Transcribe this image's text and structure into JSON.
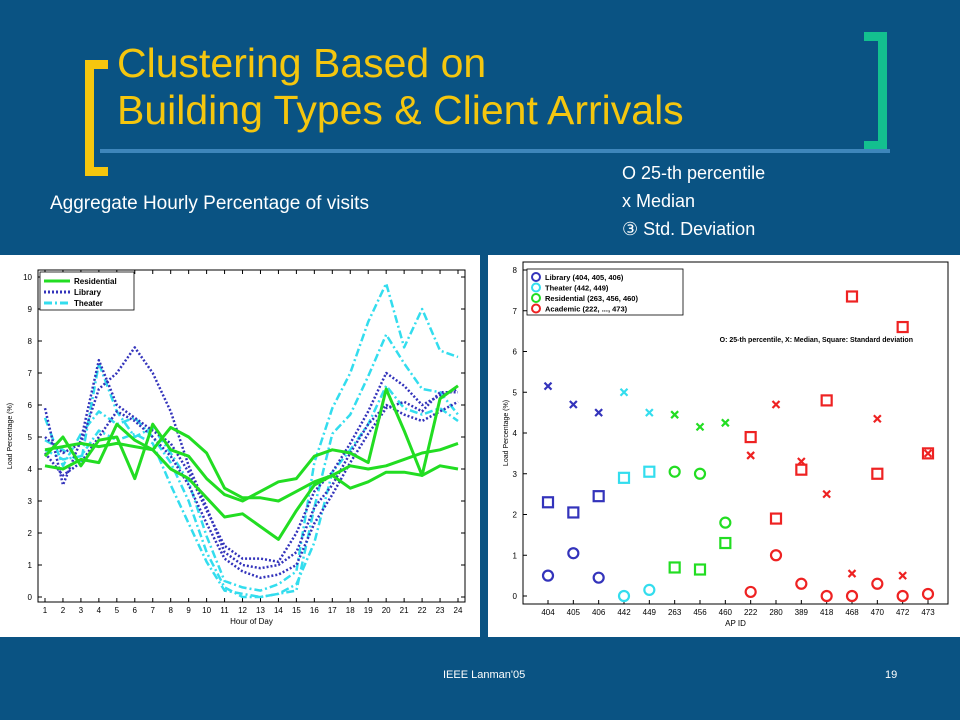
{
  "slide": {
    "title_line1": "Clustering Based on",
    "title_line2": "Building Types &  Client Arrivals",
    "subtitle": "Aggregate Hourly Percentage of visits",
    "legend_line1": "O 25-th percentile",
    "legend_line2": "x  Median",
    "legend_line3": "③   Std. Deviation",
    "footer_center": "IEEE Lanman'05",
    "page_number": "19"
  },
  "colors": {
    "background": "#0a5383",
    "title": "#f5c60e",
    "residential": "#22dd22",
    "library": "#3333bb",
    "theater": "#33ddee",
    "academic": "#ee2222"
  },
  "chart_data": [
    {
      "type": "line",
      "xlabel": "Hour of Day",
      "ylabel": "Load Percentage (%)",
      "x": [
        1,
        2,
        3,
        4,
        5,
        6,
        7,
        8,
        9,
        10,
        11,
        12,
        13,
        14,
        15,
        16,
        17,
        18,
        19,
        20,
        21,
        22,
        23,
        24
      ],
      "xlim": [
        1,
        24
      ],
      "ylim": [
        0,
        10
      ],
      "legend": [
        "Residential",
        "Library",
        "Theater"
      ],
      "legend_position": "top-left",
      "series": [
        {
          "name": "Residential",
          "group": "Residential",
          "style": "solid",
          "values": [
            4.6,
            4.7,
            4.8,
            4.7,
            4.8,
            4.7,
            4.6,
            5.3,
            5.0,
            4.5,
            3.4,
            3.1,
            3.1,
            3.0,
            3.3,
            3.6,
            3.8,
            4.1,
            4.0,
            4.1,
            4.3,
            4.5,
            4.6,
            4.8
          ]
        },
        {
          "name": "",
          "group": "Residential",
          "style": "solid",
          "values": [
            4.4,
            5.0,
            4.1,
            4.9,
            5.0,
            3.7,
            5.4,
            4.6,
            4.4,
            3.7,
            3.2,
            3.0,
            3.3,
            3.6,
            3.7,
            4.4,
            4.6,
            4.5,
            4.2,
            6.5,
            5.2,
            3.8,
            6.2,
            6.6
          ]
        },
        {
          "name": "",
          "group": "Residential",
          "style": "solid",
          "values": [
            4.1,
            4.0,
            4.3,
            4.2,
            5.4,
            4.9,
            4.6,
            4.0,
            3.7,
            3.1,
            2.5,
            2.6,
            2.2,
            1.8,
            2.7,
            3.5,
            3.8,
            3.4,
            3.6,
            3.9,
            3.9,
            3.8,
            4.1,
            4.0
          ]
        },
        {
          "name": "Library",
          "group": "Library",
          "style": "dotted",
          "values": [
            5.9,
            3.5,
            4.9,
            7.4,
            6.0,
            5.6,
            5.2,
            4.8,
            3.9,
            2.7,
            1.6,
            1.2,
            1.2,
            1.1,
            2.0,
            3.3,
            3.9,
            4.8,
            5.8,
            7.0,
            6.6,
            6.0,
            6.3,
            6.5
          ]
        },
        {
          "name": "",
          "group": "Library",
          "style": "dotted",
          "values": [
            5.0,
            4.5,
            4.8,
            6.5,
            7.0,
            7.8,
            7.0,
            5.8,
            4.1,
            2.8,
            1.4,
            1.0,
            0.9,
            1.0,
            1.4,
            2.8,
            3.5,
            4.5,
            5.4,
            6.0,
            5.7,
            5.5,
            5.8,
            6.1
          ]
        },
        {
          "name": "",
          "group": "Library",
          "style": "dotted",
          "values": [
            4.5,
            3.8,
            4.2,
            5.0,
            5.8,
            5.5,
            5.0,
            4.4,
            3.5,
            2.3,
            1.2,
            0.8,
            0.6,
            0.7,
            1.0,
            2.3,
            3.2,
            4.2,
            5.1,
            5.9,
            6.1,
            5.8,
            6.4,
            6.4
          ]
        },
        {
          "name": "Theater",
          "group": "Theater",
          "style": "dashdot",
          "values": [
            4.9,
            4.6,
            4.2,
            7.3,
            5.8,
            5.0,
            5.3,
            4.5,
            3.6,
            1.9,
            0.5,
            0.3,
            0.2,
            0.4,
            0.8,
            4.2,
            5.9,
            7.0,
            8.6,
            9.8,
            7.8,
            9.0,
            7.7,
            7.5
          ]
        },
        {
          "name": "",
          "group": "Theater",
          "style": "dashdot",
          "values": [
            5.6,
            4.1,
            5.1,
            5.8,
            5.4,
            5.6,
            5.0,
            4.2,
            3.0,
            1.4,
            0.3,
            0.0,
            0.0,
            0.1,
            0.2,
            2.8,
            5.1,
            5.7,
            6.9,
            8.2,
            7.3,
            6.5,
            6.4,
            5.7
          ]
        },
        {
          "name": "",
          "group": "Theater",
          "style": "dashdot",
          "values": [
            4.6,
            4.3,
            4.4,
            5.2,
            4.9,
            5.1,
            4.8,
            3.5,
            2.3,
            1.1,
            0.2,
            0.1,
            0.0,
            0.1,
            0.4,
            1.7,
            3.9,
            4.6,
            5.4,
            6.6,
            5.9,
            5.7,
            5.9,
            5.5
          ]
        }
      ]
    },
    {
      "type": "scatter",
      "xlabel": "AP ID",
      "ylabel": "Load Percentage (%)",
      "categories": [
        "404",
        "405",
        "406",
        "442",
        "449",
        "263",
        "456",
        "460",
        "222",
        "280",
        "389",
        "418",
        "468",
        "470",
        "472",
        "473"
      ],
      "ylim": [
        0,
        8
      ],
      "annotation": "O: 25-th percentile, X: Median, Square: Standard deviation",
      "legend": [
        "Library (404, 405, 406)",
        "Theater (442, 449)",
        "Residential (263, 456, 460)",
        "Academic (222, ..., 473)"
      ],
      "legend_position": "top-left",
      "groups": [
        {
          "name": "Library",
          "count": 3
        },
        {
          "name": "Theater",
          "count": 2
        },
        {
          "name": "Residential",
          "count": 3
        },
        {
          "name": "Academic",
          "count": 8
        }
      ],
      "series": [
        {
          "name": "O: 25-th percentile",
          "marker": "circle",
          "values": [
            0.5,
            1.05,
            0.45,
            0.0,
            0.15,
            3.05,
            3.0,
            1.8,
            0.1,
            1.0,
            0.3,
            0.0,
            0.0,
            0.3,
            0.0,
            0.05
          ]
        },
        {
          "name": "X: Median",
          "marker": "x",
          "values": [
            5.15,
            4.7,
            4.5,
            5.0,
            4.5,
            4.45,
            4.15,
            4.25,
            3.45,
            4.7,
            3.3,
            2.5,
            0.55,
            4.35,
            0.5,
            3.5
          ]
        },
        {
          "name": "Square: Standard deviation",
          "marker": "square",
          "values": [
            2.3,
            2.05,
            2.45,
            2.9,
            3.05,
            0.7,
            0.65,
            1.3,
            3.9,
            1.9,
            3.1,
            4.8,
            7.35,
            3.0,
            6.6,
            3.5
          ]
        }
      ]
    }
  ]
}
